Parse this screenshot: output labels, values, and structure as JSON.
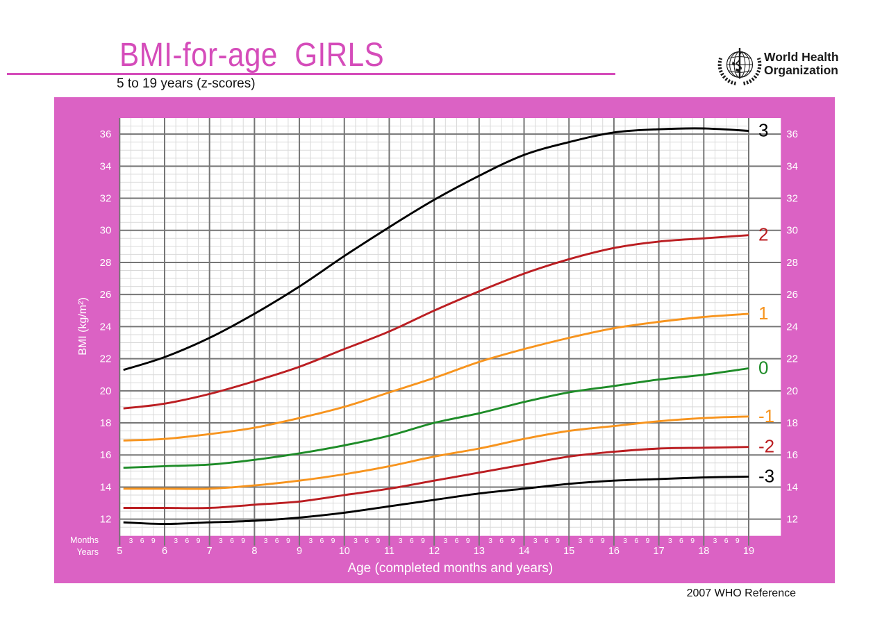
{
  "header": {
    "title": "BMI-for-age  GIRLS",
    "subtitle": "5 to 19 years (z-scores)",
    "logo_line1": "World Health",
    "logo_line2": "Organization"
  },
  "footer": {
    "reference": "2007 WHO Reference"
  },
  "colors": {
    "title_pink": "#d54cba",
    "accent_pink": "#db62c4",
    "major_grid": "#767676",
    "minor_grid": "#d9d9d9",
    "z3_black": "#000000",
    "z2_red": "#bb1e22",
    "z1_orange": "#f7941e",
    "z0_green": "#1e8c28",
    "label_white": "#ffffff"
  },
  "chart_data": {
    "type": "line",
    "title": "BMI-for-age GIRLS (5 to 19 years, z-scores)",
    "xlabel": "Age (completed months and years)",
    "ylabel": "BMI (kg/m²)",
    "x_row1_label": "Months",
    "x_row2_label": "Years",
    "month_tick_labels": [
      "3",
      "6",
      "9"
    ],
    "year_ticks": [
      5,
      6,
      7,
      8,
      9,
      10,
      11,
      12,
      13,
      14,
      15,
      16,
      17,
      18,
      19
    ],
    "yticks": [
      12,
      14,
      16,
      18,
      20,
      22,
      24,
      26,
      28,
      30,
      32,
      34,
      36
    ],
    "ylim": [
      10.96,
      37.0
    ],
    "xlim": [
      5,
      19.72
    ],
    "x_years": [
      5.083,
      6,
      7,
      8,
      9,
      10,
      11,
      12,
      13,
      14,
      15,
      16,
      17,
      18,
      19
    ],
    "series": [
      {
        "name": "3",
        "color": "#000000",
        "values": [
          21.3,
          22.1,
          23.3,
          24.8,
          26.5,
          28.4,
          30.2,
          31.9,
          33.4,
          34.7,
          35.5,
          36.1,
          36.3,
          36.35,
          36.2
        ]
      },
      {
        "name": "2",
        "color": "#bb1e22",
        "values": [
          18.9,
          19.2,
          19.8,
          20.6,
          21.5,
          22.6,
          23.7,
          25.0,
          26.2,
          27.3,
          28.2,
          28.9,
          29.3,
          29.5,
          29.7
        ]
      },
      {
        "name": "1",
        "color": "#f7941e",
        "values": [
          16.9,
          17.0,
          17.3,
          17.7,
          18.3,
          19.0,
          19.9,
          20.8,
          21.8,
          22.6,
          23.3,
          23.9,
          24.3,
          24.6,
          24.8
        ]
      },
      {
        "name": "0",
        "color": "#1e8c28",
        "values": [
          15.2,
          15.3,
          15.4,
          15.7,
          16.1,
          16.6,
          17.2,
          18.0,
          18.6,
          19.3,
          19.9,
          20.3,
          20.7,
          21.0,
          21.4
        ]
      },
      {
        "name": "-1",
        "color": "#f7941e",
        "values": [
          13.9,
          13.9,
          13.9,
          14.1,
          14.4,
          14.8,
          15.3,
          15.9,
          16.4,
          17.0,
          17.5,
          17.8,
          18.1,
          18.3,
          18.4
        ]
      },
      {
        "name": "-2",
        "color": "#bb1e22",
        "values": [
          12.7,
          12.7,
          12.7,
          12.9,
          13.1,
          13.5,
          13.9,
          14.4,
          14.9,
          15.4,
          15.9,
          16.2,
          16.4,
          16.45,
          16.5
        ]
      },
      {
        "name": "-3",
        "color": "#000000",
        "values": [
          11.8,
          11.7,
          11.8,
          11.9,
          12.1,
          12.4,
          12.8,
          13.2,
          13.6,
          13.9,
          14.2,
          14.4,
          14.5,
          14.6,
          14.65
        ]
      }
    ]
  }
}
